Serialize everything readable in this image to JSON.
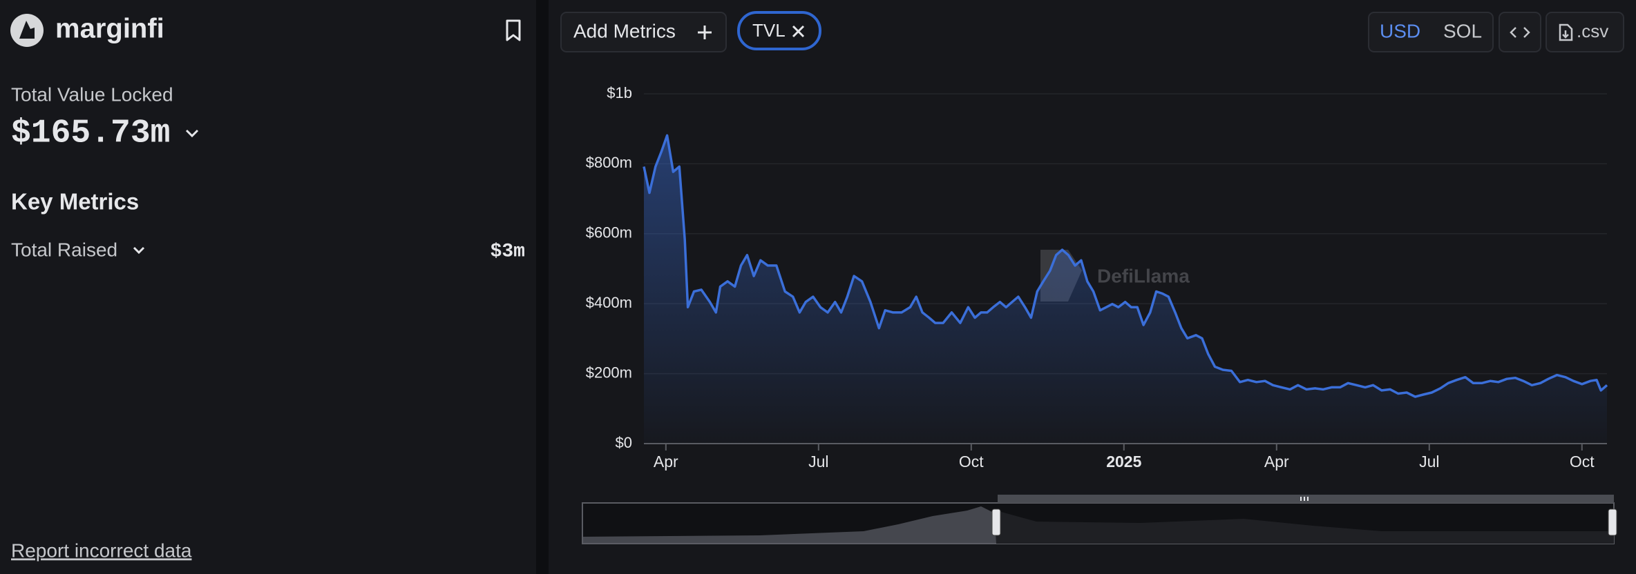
{
  "sidebar": {
    "name": "marginfi",
    "tvl_label": "Total Value Locked",
    "tvl_value": "$165.73m",
    "key_metrics": "Key Metrics",
    "total_raised_label": "Total Raised",
    "total_raised_value": "$3m",
    "report_link": "Report incorrect data"
  },
  "toolbar": {
    "add_metrics": "Add Metrics",
    "currencies": [
      "USD",
      "SOL"
    ],
    "csv": ".csv"
  },
  "watermark": "DefiLlama",
  "chart_data": {
    "type": "area",
    "x": [
      2024.214,
      2024.223,
      2024.233,
      2024.243,
      2024.252,
      2024.262,
      2024.272,
      2024.281,
      2024.286,
      2024.296,
      2024.308,
      2024.322,
      2024.332,
      2024.339,
      2024.351,
      2024.363,
      2024.373,
      2024.383,
      2024.394,
      2024.405,
      2024.417,
      2024.431,
      2024.445,
      2024.458,
      2024.469,
      2024.479,
      2024.491,
      2024.503,
      2024.515,
      2024.527,
      2024.537,
      2024.547,
      2024.558,
      2024.571,
      2024.585,
      2024.599,
      2024.609,
      2024.622,
      2024.636,
      2024.65,
      2024.66,
      2024.67,
      2024.681,
      2024.691,
      2024.704,
      2024.718,
      2024.732,
      2024.745,
      2024.756,
      2024.766,
      2024.776,
      2024.786,
      2024.797,
      2024.807,
      2024.817,
      2024.827,
      2024.838,
      2024.848,
      2024.858,
      2024.868,
      2024.879,
      2024.889,
      2024.899,
      2024.909,
      2024.92,
      2024.93,
      2024.94,
      2024.95,
      2024.961,
      2024.971,
      2024.981,
      2024.991,
      2025.002,
      2025.012,
      2025.022,
      2025.032,
      2025.043,
      2025.053,
      2025.063,
      2025.073,
      2025.084,
      2025.094,
      2025.104,
      2025.118,
      2025.128,
      2025.138,
      2025.149,
      2025.162,
      2025.176,
      2025.19,
      2025.203,
      2025.217,
      2025.231,
      2025.244,
      2025.258,
      2025.272,
      2025.285,
      2025.299,
      2025.313,
      2025.326,
      2025.34,
      2025.354,
      2025.367,
      2025.381,
      2025.395,
      2025.408,
      2025.422,
      2025.436,
      2025.449,
      2025.463,
      2025.477,
      2025.49,
      2025.504,
      2025.518,
      2025.531,
      2025.545,
      2025.559,
      2025.572,
      2025.586,
      2025.6,
      2025.613,
      2025.627,
      2025.641,
      2025.654,
      2025.668,
      2025.682,
      2025.695,
      2025.709,
      2025.723,
      2025.736,
      2025.75,
      2025.764,
      2025.774,
      2025.781,
      2025.791
    ],
    "series": [
      {
        "name": "TVL",
        "color": "#3b6fd9",
        "values": [
          792,
          717,
          792,
          836,
          881,
          777,
          792,
          583,
          390,
          435,
          440,
          405,
          375,
          449,
          464,
          449,
          509,
          539,
          479,
          524,
          509,
          509,
          435,
          420,
          375,
          405,
          420,
          390,
          375,
          405,
          375,
          420,
          479,
          464,
          405,
          330,
          381,
          375,
          375,
          390,
          420,
          375,
          360,
          345,
          345,
          375,
          345,
          390,
          360,
          375,
          375,
          390,
          405,
          390,
          405,
          420,
          390,
          360,
          435,
          464,
          494,
          539,
          554,
          539,
          509,
          524,
          464,
          435,
          381,
          390,
          399,
          390,
          405,
          390,
          390,
          339,
          375,
          435,
          429,
          420,
          375,
          330,
          301,
          310,
          301,
          256,
          220,
          211,
          208,
          176,
          182,
          176,
          179,
          167,
          161,
          155,
          167,
          155,
          158,
          155,
          161,
          161,
          173,
          167,
          161,
          167,
          152,
          155,
          143,
          146,
          134,
          140,
          146,
          158,
          173,
          182,
          190,
          173,
          173,
          179,
          176,
          185,
          188,
          179,
          167,
          173,
          185,
          196,
          190,
          179,
          170,
          179,
          182,
          152,
          167
        ]
      }
    ],
    "xlim": [
      2024.214,
      2025.791
    ],
    "xticks": [
      {
        "value": 2024.25,
        "label": "Apr"
      },
      {
        "value": 2024.5,
        "label": "Jul"
      },
      {
        "value": 2024.75,
        "label": "Oct"
      },
      2025,
      {
        "value": 2025.25,
        "label": "Apr"
      },
      {
        "value": 2025.5,
        "label": "Jul"
      },
      {
        "value": 2025.75,
        "label": "Oct"
      }
    ],
    "ylim": [
      0,
      1000
    ],
    "yticks": [
      {
        "value": 0,
        "label": "$0"
      },
      {
        "value": 200,
        "label": "$200m"
      },
      {
        "value": 400,
        "label": "$400m"
      },
      {
        "value": 600,
        "label": "$600m"
      },
      {
        "value": 800,
        "label": "$800m"
      },
      {
        "value": 1000,
        "label": "$1b"
      }
    ],
    "grid": true
  }
}
